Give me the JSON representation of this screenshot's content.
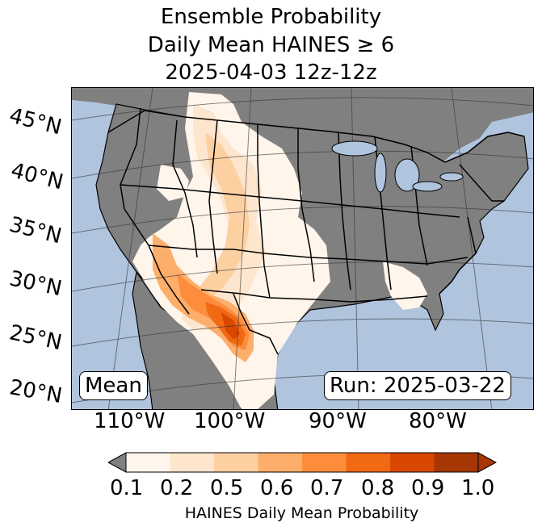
{
  "title": {
    "line1": "Ensemble Probability",
    "line2": "Daily Mean HAINES ≥ 6",
    "line3": "2025-04-03 12z-12z"
  },
  "map": {
    "ocean_color": "#b0c4de",
    "nodata_color": "#808080",
    "border_color": "#000000",
    "lat_labels": [
      "45°N",
      "40°N",
      "35°N",
      "30°N",
      "25°N",
      "20°N"
    ],
    "lon_labels": [
      "110°W",
      "100°W",
      "90°W",
      "80°W"
    ],
    "mean_box": "Mean",
    "run_box": "Run: 2025-03-22"
  },
  "colorbar": {
    "ticks": [
      "0.1",
      "0.2",
      "0.5",
      "0.6",
      "0.7",
      "0.8",
      "0.9",
      "1.0"
    ],
    "colors": [
      "#fff5eb",
      "#fee6ce",
      "#fdd0a2",
      "#fdae6b",
      "#fd8d3c",
      "#f16913",
      "#d94801",
      "#a63603"
    ],
    "under_color": "#808080",
    "label": "HAINES Daily Mean Probability"
  }
}
